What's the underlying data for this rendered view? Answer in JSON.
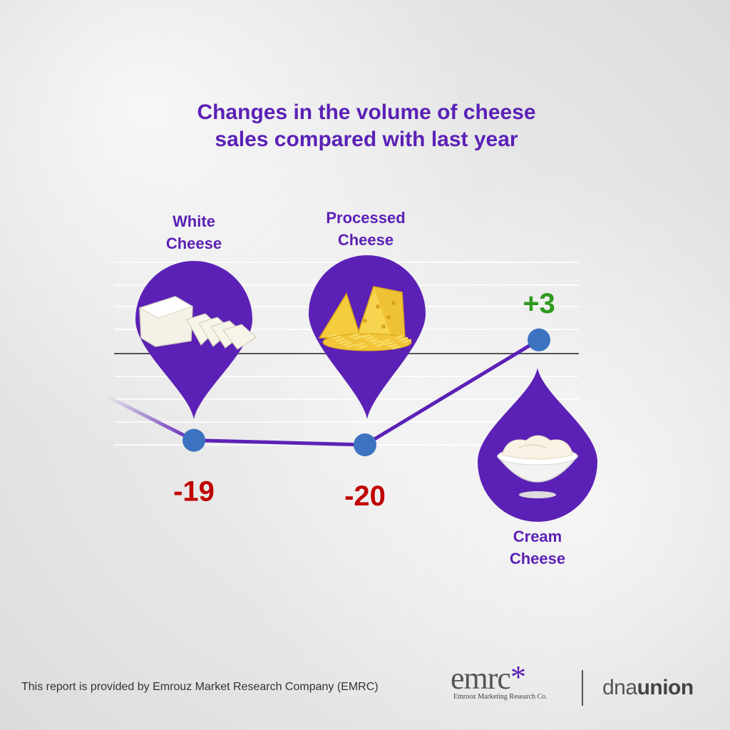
{
  "chart_data": {
    "type": "line",
    "title_lines": [
      "Changes in the volume of cheese",
      "sales compared with last year"
    ],
    "categories": [
      {
        "label_lines": [
          "White",
          "Cheese"
        ],
        "icon": "white-cheese-icon"
      },
      {
        "label_lines": [
          "Processed",
          "Cheese"
        ],
        "icon": "processed-cheese-icon"
      },
      {
        "label_lines": [
          "Cream",
          "Cheese"
        ],
        "icon": "cream-cheese-icon"
      }
    ],
    "values": [
      -19,
      -20,
      3
    ],
    "value_labels": [
      "-19",
      "-20",
      "+3"
    ],
    "ylim": [
      -30,
      10
    ],
    "grid": true,
    "colors": {
      "line": "#5b21b6",
      "marker": "#3b73c0",
      "negative": "#c00000",
      "positive": "#2e9a1f",
      "pin": "#5b21b6",
      "title": "#5b21b6"
    }
  },
  "footer": {
    "text": "This report is provided by Emrouz Market Research Company (EMRC)",
    "logo_emrc": "emrc",
    "logo_emrc_sub": "Emrooz Marketing Research Co.",
    "logo_dna_light": "dna",
    "logo_dna_bold": "union"
  }
}
